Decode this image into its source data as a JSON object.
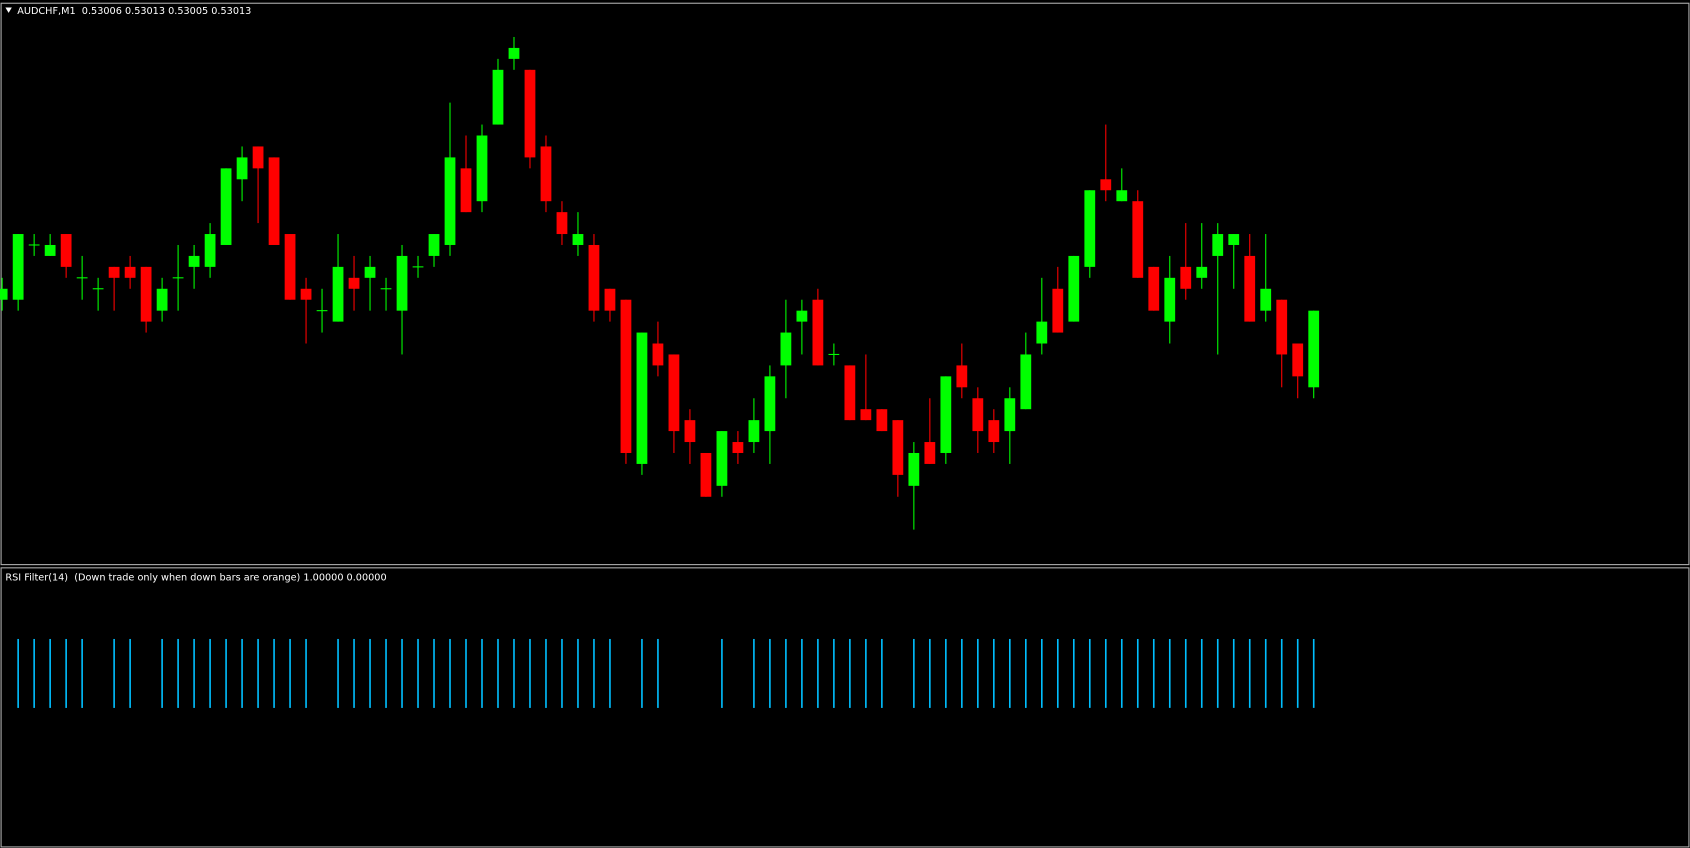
{
  "chart_data": [
    {
      "type": "candlestick",
      "title": "AUDCHF,M1  0.53006 0.53013 0.53005 0.53013",
      "up_color": "#00ff00",
      "down_color": "#ff0000",
      "ylim": [
        0.5299,
        0.5304
      ],
      "open": [
        0.53014,
        0.53014,
        0.53019,
        0.53018,
        0.5302,
        0.53016,
        0.53015,
        0.53017,
        0.53017,
        0.53017,
        0.53013,
        0.53016,
        0.53017,
        0.53017,
        0.53019,
        0.53025,
        0.53028,
        0.53027,
        0.5302,
        0.53015,
        0.53013,
        0.53012,
        0.53016,
        0.53016,
        0.53015,
        0.53013,
        0.53017,
        0.53018,
        0.53019,
        0.53026,
        0.53023,
        0.5303,
        0.53036,
        0.53035,
        0.53028,
        0.53022,
        0.53019,
        0.53019,
        0.53015,
        0.53014,
        0.52999,
        0.5301,
        0.53009,
        0.53003,
        0.53,
        0.52997,
        0.53001,
        0.53001,
        0.53002,
        0.53008,
        0.53012,
        0.53014,
        0.53009,
        0.53008,
        0.53004,
        0.53004,
        0.53003,
        0.52997,
        0.53001,
        0.53,
        0.53008,
        0.53005,
        0.53003,
        0.53002,
        0.53004,
        0.5301,
        0.53015,
        0.53012,
        0.53017,
        0.53025,
        0.53023,
        0.53023,
        0.53017,
        0.53012,
        0.53017,
        0.53016,
        0.53018,
        0.53019,
        0.53018,
        0.53013,
        0.53014,
        0.5301,
        0.53006
      ],
      "high": [
        0.53016,
        0.5302,
        0.5302,
        0.5302,
        0.5302,
        0.53018,
        0.53016,
        0.53017,
        0.53018,
        0.53017,
        0.53016,
        0.53019,
        0.53019,
        0.53021,
        0.53026,
        0.53028,
        0.53028,
        0.53027,
        0.5302,
        0.53016,
        0.53015,
        0.5302,
        0.53018,
        0.53018,
        0.53016,
        0.53019,
        0.53018,
        0.5302,
        0.53032,
        0.53029,
        0.5303,
        0.53036,
        0.53038,
        0.53035,
        0.53029,
        0.53023,
        0.53022,
        0.5302,
        0.53015,
        0.53014,
        0.53011,
        0.53012,
        0.53009,
        0.53004,
        0.53,
        0.53002,
        0.53002,
        0.53005,
        0.53008,
        0.53014,
        0.53014,
        0.53015,
        0.5301,
        0.53008,
        0.53009,
        0.53004,
        0.53003,
        0.53001,
        0.53005,
        0.53007,
        0.5301,
        0.53006,
        0.53004,
        0.53006,
        0.53011,
        0.53016,
        0.53017,
        0.53018,
        0.53024,
        0.5303,
        0.53026,
        0.53024,
        0.53017,
        0.53018,
        0.53021,
        0.53021,
        0.53021,
        0.5302,
        0.5302,
        0.5302,
        0.53014,
        0.5301,
        0.53013
      ],
      "low": [
        0.53013,
        0.53013,
        0.53018,
        0.53018,
        0.53016,
        0.53014,
        0.53013,
        0.53013,
        0.53015,
        0.53011,
        0.53012,
        0.53013,
        0.53015,
        0.53016,
        0.53019,
        0.53023,
        0.53021,
        0.53019,
        0.53014,
        0.5301,
        0.53011,
        0.53012,
        0.53013,
        0.53013,
        0.53013,
        0.53009,
        0.53016,
        0.53017,
        0.53018,
        0.53022,
        0.53022,
        0.5303,
        0.53035,
        0.53026,
        0.53022,
        0.53019,
        0.53018,
        0.53012,
        0.53012,
        0.52999,
        0.52998,
        0.53007,
        0.53,
        0.52999,
        0.52996,
        0.52996,
        0.52999,
        0.53,
        0.52999,
        0.53005,
        0.53009,
        0.53008,
        0.53008,
        0.53003,
        0.53003,
        0.53002,
        0.52996,
        0.52993,
        0.52999,
        0.52999,
        0.53005,
        0.53,
        0.53,
        0.52999,
        0.53004,
        0.53009,
        0.53011,
        0.53012,
        0.53016,
        0.53023,
        0.53023,
        0.53016,
        0.53013,
        0.5301,
        0.53014,
        0.53015,
        0.53009,
        0.53015,
        0.53012,
        0.53012,
        0.53006,
        0.53005,
        0.53005
      ],
      "close": [
        0.53015,
        0.5302,
        0.53019,
        0.53019,
        0.53017,
        0.53016,
        0.53015,
        0.53016,
        0.53016,
        0.53012,
        0.53015,
        0.53016,
        0.53018,
        0.5302,
        0.53026,
        0.53027,
        0.53026,
        0.53019,
        0.53014,
        0.53014,
        0.53013,
        0.53017,
        0.53015,
        0.53017,
        0.53015,
        0.53018,
        0.53017,
        0.5302,
        0.53027,
        0.53022,
        0.53029,
        0.53035,
        0.53037,
        0.53027,
        0.53023,
        0.5302,
        0.5302,
        0.53013,
        0.53013,
        0.53,
        0.53011,
        0.53008,
        0.53002,
        0.53001,
        0.52996,
        0.53002,
        0.53,
        0.53003,
        0.53007,
        0.53011,
        0.53013,
        0.53008,
        0.53009,
        0.53003,
        0.53003,
        0.53002,
        0.52998,
        0.53,
        0.52999,
        0.53007,
        0.53006,
        0.53002,
        0.53001,
        0.53005,
        0.53009,
        0.53012,
        0.53011,
        0.53018,
        0.53024,
        0.53024,
        0.53024,
        0.53016,
        0.53013,
        0.53016,
        0.53015,
        0.53017,
        0.5302,
        0.5302,
        0.53012,
        0.53015,
        0.53009,
        0.53007,
        0.53013
      ]
    },
    {
      "type": "bar",
      "title": "RSI Filter(14)  (Down trade only when down bars are orange) 1.00000 0.00000",
      "color": "#00bfff",
      "ylim": [
        -2,
        2
      ],
      "values": [
        0,
        1,
        1,
        1,
        1,
        1,
        0,
        1,
        1,
        0,
        1,
        1,
        1,
        1,
        1,
        1,
        1,
        1,
        1,
        1,
        0,
        1,
        1,
        1,
        1,
        1,
        1,
        1,
        1,
        1,
        1,
        1,
        1,
        1,
        1,
        1,
        1,
        1,
        1,
        0,
        1,
        1,
        0,
        0,
        0,
        1,
        0,
        1,
        1,
        1,
        1,
        1,
        1,
        1,
        1,
        1,
        0,
        1,
        1,
        1,
        1,
        1,
        1,
        1,
        1,
        1,
        1,
        1,
        1,
        1,
        1,
        1,
        1,
        1,
        1,
        1,
        1,
        1,
        1,
        1,
        1,
        1,
        1
      ]
    }
  ]
}
